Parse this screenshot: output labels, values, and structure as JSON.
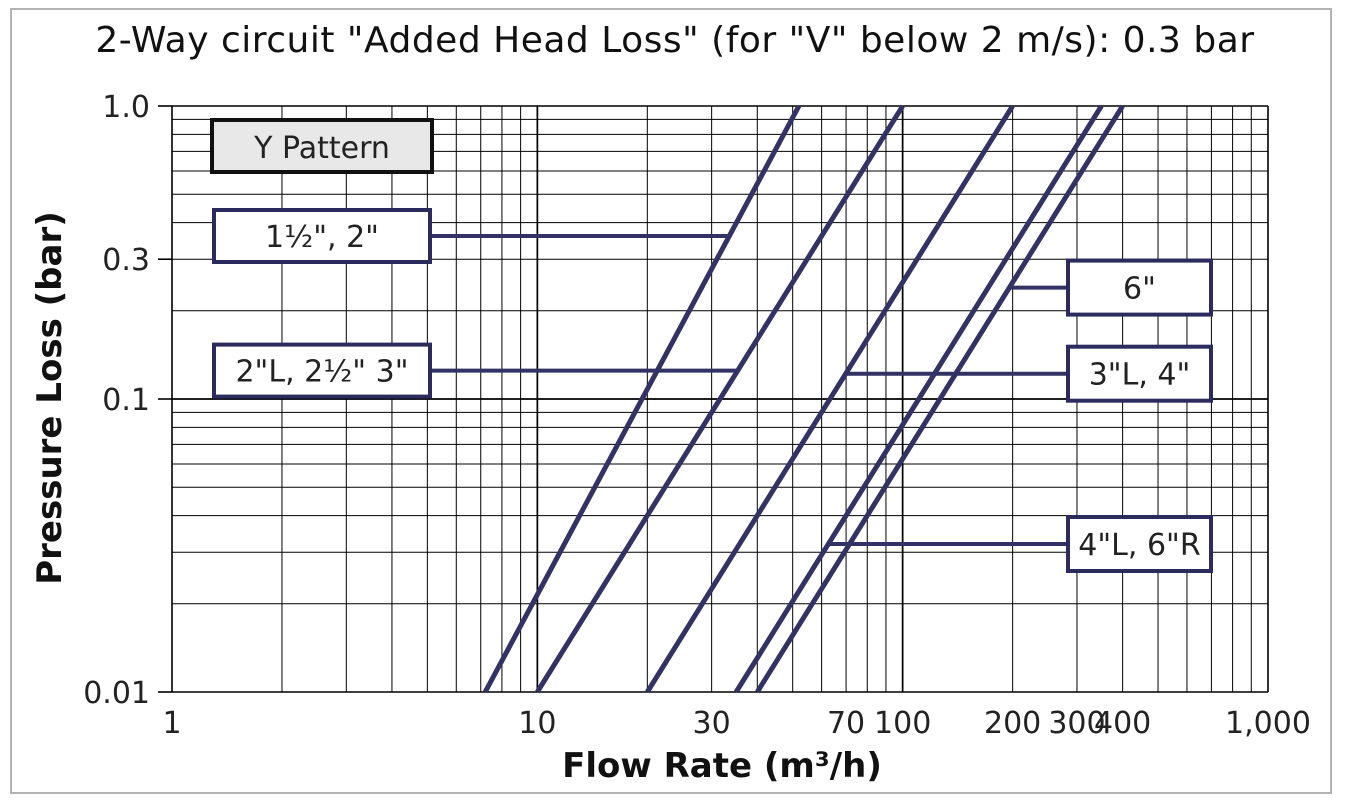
{
  "chart_data": {
    "type": "line",
    "title": "2-Way circuit \"Added Head Loss\" (for \"V\" below 2 m/s): 0.3 bar",
    "xlabel": "Flow Rate (m³/h)",
    "ylabel": "Pressure Loss (bar)",
    "x_scale": "log",
    "y_scale": "log",
    "xlim": [
      1,
      1000
    ],
    "ylim": [
      0.01,
      1.0
    ],
    "grid": true,
    "x_ticks": [
      {
        "value": 1,
        "label": "1"
      },
      {
        "value": 10,
        "label": "10"
      },
      {
        "value": 30,
        "label": "30"
      },
      {
        "value": 70,
        "label": "70"
      },
      {
        "value": 100,
        "label": "100"
      },
      {
        "value": 200,
        "label": "200"
      },
      {
        "value": 300,
        "label": "300"
      },
      {
        "value": 400,
        "label": "400"
      },
      {
        "value": 1000,
        "label": "1,000"
      }
    ],
    "y_ticks": [
      {
        "value": 1.0,
        "label": "1.0"
      },
      {
        "value": 0.3,
        "label": "0.3"
      },
      {
        "value": 0.1,
        "label": "0.1"
      },
      {
        "value": 0.01,
        "label": "0.01"
      }
    ],
    "pattern_label": "Y Pattern",
    "series": [
      {
        "name": "1½\", 2\"",
        "x": [
          7.2,
          52
        ],
        "y": [
          0.01,
          1.0
        ]
      },
      {
        "name": "2\"L, 2½\" 3\"",
        "x": [
          10,
          100
        ],
        "y": [
          0.01,
          1.0
        ]
      },
      {
        "name": "3\"L, 4\"",
        "x": [
          20,
          200
        ],
        "y": [
          0.01,
          1.0
        ]
      },
      {
        "name": "4\"L, 6\"R",
        "x": [
          35,
          350
        ],
        "y": [
          0.01,
          1.0
        ]
      },
      {
        "name": "6\"",
        "x": [
          40,
          400
        ],
        "y": [
          0.01,
          1.0
        ]
      }
    ],
    "labels": [
      {
        "text": "1½\", 2\"",
        "series": 0,
        "side": "left",
        "at_y": 0.36
      },
      {
        "text": "2\"L, 2½\" 3\"",
        "series": 1,
        "side": "left",
        "at_y": 0.125
      },
      {
        "text": "6\"",
        "series": 4,
        "side": "right",
        "at_y": 0.24
      },
      {
        "text": "3\"L, 4\"",
        "series": 2,
        "side": "right",
        "at_y": 0.122
      },
      {
        "text": "4\"L, 6\"R",
        "series": 3,
        "side": "right",
        "at_y": 0.032
      }
    ],
    "colors": {
      "series": "#323264",
      "grid": "#000000",
      "box_border": "#2b2b5e",
      "pattern_box_fill": "#e8e8e8"
    }
  }
}
